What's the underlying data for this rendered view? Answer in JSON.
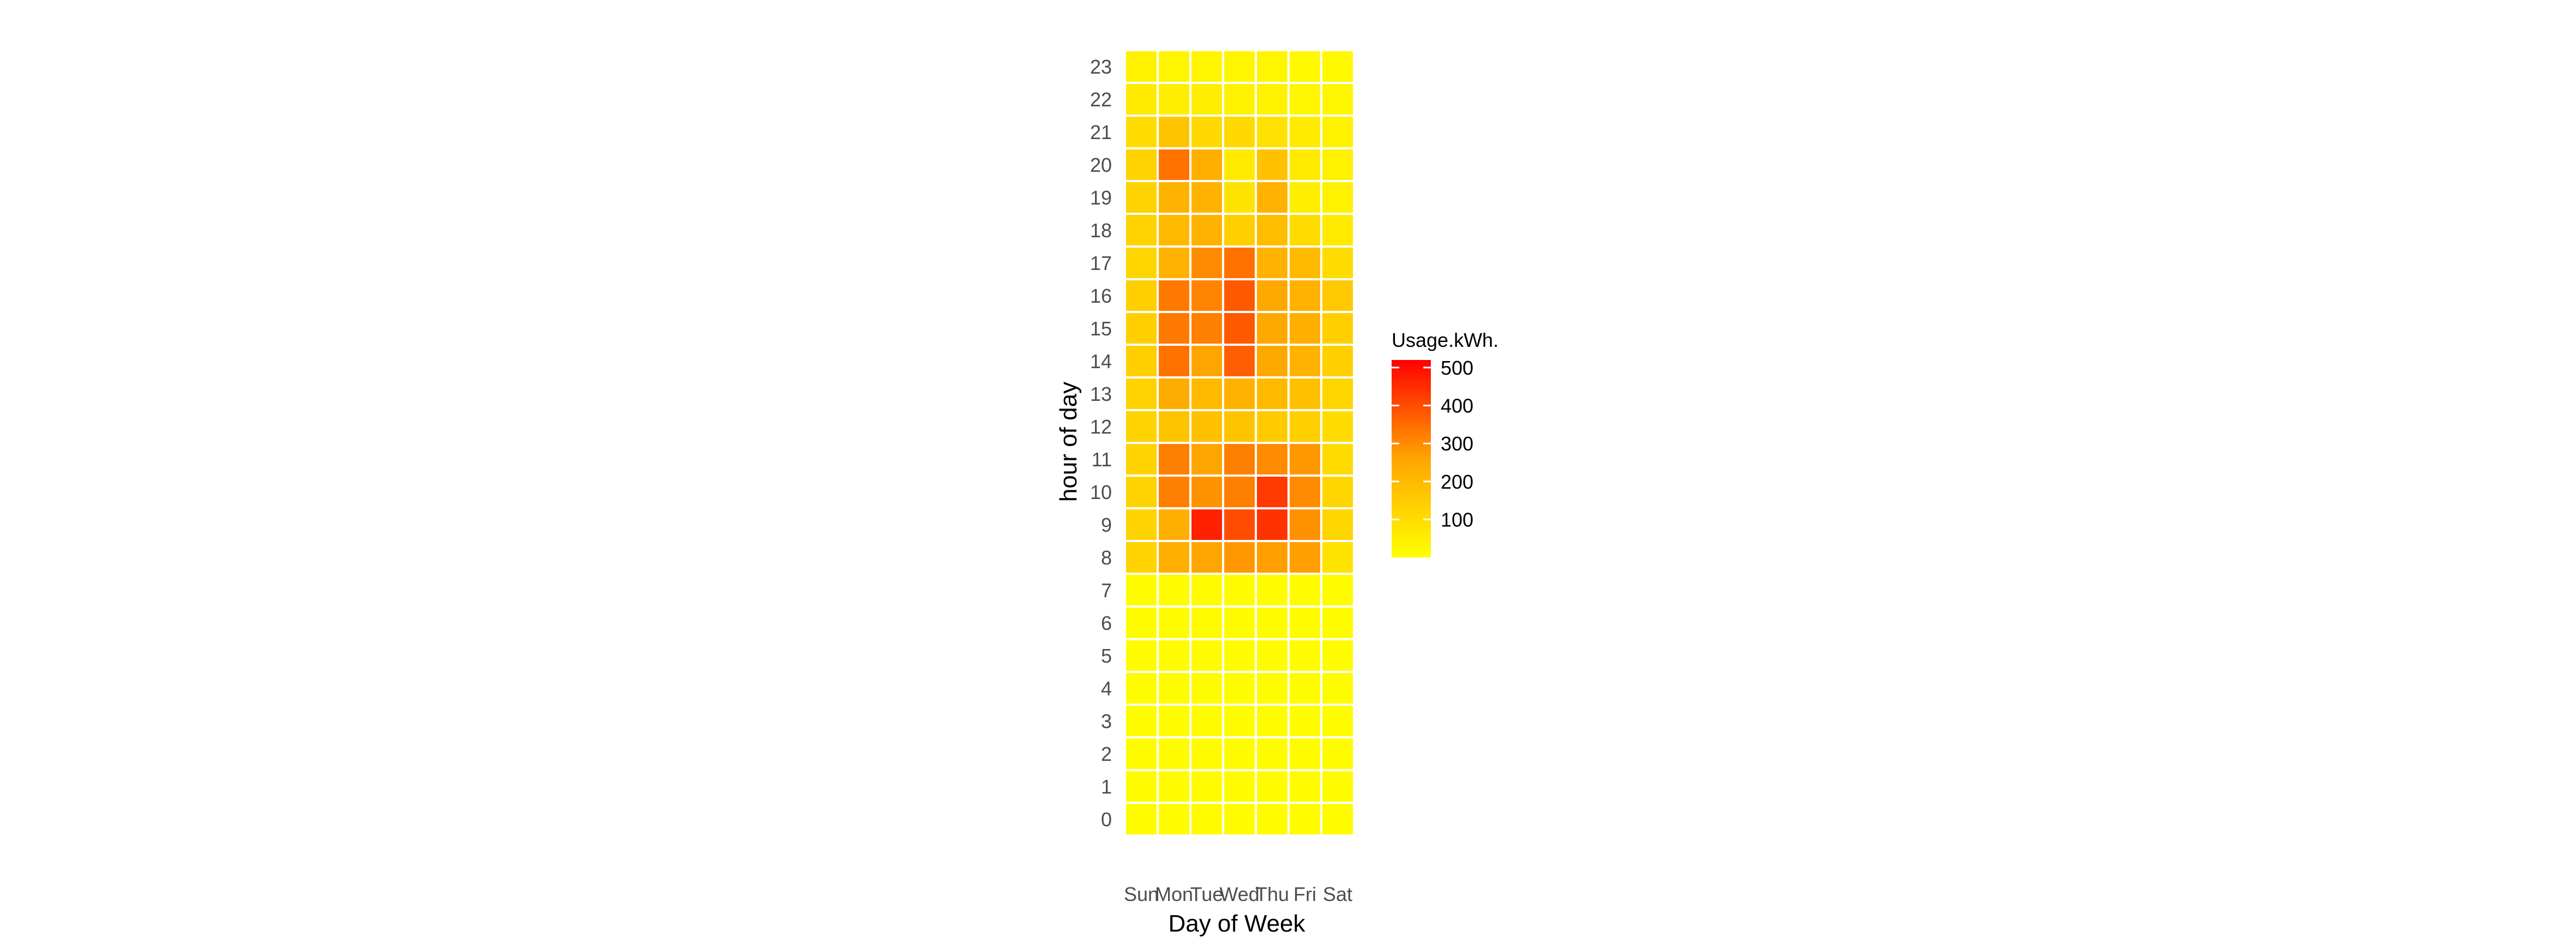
{
  "chart_data": {
    "type": "heatmap",
    "xlabel": "Day of Week",
    "ylabel": "hour of day",
    "x_categories": [
      "Sun",
      "Mon",
      "Tue",
      "Wed",
      "Thu",
      "Fri",
      "Sat"
    ],
    "y_categories": [
      0,
      1,
      2,
      3,
      4,
      5,
      6,
      7,
      8,
      9,
      10,
      11,
      12,
      13,
      14,
      15,
      16,
      17,
      18,
      19,
      20,
      21,
      22,
      23
    ],
    "value_range": [
      0,
      520
    ],
    "color_scale": {
      "low": "#FFFF00",
      "mid": "#FFA500",
      "high": "#FF0000"
    },
    "cell_border_color": "#ffffff",
    "grid": false,
    "legend": {
      "title": "Usage.kWh.",
      "position": "right",
      "ticks": [
        100,
        200,
        300,
        400,
        500
      ]
    },
    "values_by_hour": [
      [
        10,
        10,
        10,
        10,
        10,
        10,
        10
      ],
      [
        10,
        10,
        10,
        10,
        10,
        10,
        10
      ],
      [
        10,
        10,
        10,
        10,
        10,
        10,
        10
      ],
      [
        10,
        10,
        10,
        10,
        10,
        10,
        10
      ],
      [
        10,
        10,
        10,
        10,
        10,
        10,
        10
      ],
      [
        10,
        10,
        10,
        10,
        10,
        10,
        10
      ],
      [
        10,
        10,
        10,
        10,
        10,
        10,
        10
      ],
      [
        10,
        10,
        10,
        10,
        10,
        10,
        10
      ],
      [
        130,
        230,
        260,
        280,
        270,
        270,
        80
      ],
      [
        130,
        230,
        470,
        400,
        440,
        290,
        120
      ],
      [
        130,
        320,
        290,
        320,
        430,
        300,
        120
      ],
      [
        130,
        320,
        260,
        320,
        300,
        280,
        100
      ],
      [
        130,
        170,
        180,
        170,
        150,
        140,
        100
      ],
      [
        130,
        240,
        200,
        220,
        200,
        180,
        120
      ],
      [
        140,
        340,
        260,
        370,
        250,
        220,
        140
      ],
      [
        140,
        330,
        320,
        380,
        250,
        230,
        140
      ],
      [
        140,
        330,
        310,
        380,
        250,
        220,
        160
      ],
      [
        120,
        220,
        300,
        340,
        220,
        200,
        100
      ],
      [
        130,
        200,
        220,
        140,
        190,
        100,
        60
      ],
      [
        130,
        220,
        220,
        80,
        220,
        50,
        40
      ],
      [
        130,
        340,
        230,
        60,
        180,
        60,
        40
      ],
      [
        100,
        170,
        110,
        110,
        90,
        60,
        40
      ],
      [
        60,
        50,
        50,
        40,
        40,
        30,
        30
      ],
      [
        40,
        30,
        30,
        30,
        30,
        20,
        20
      ]
    ]
  }
}
